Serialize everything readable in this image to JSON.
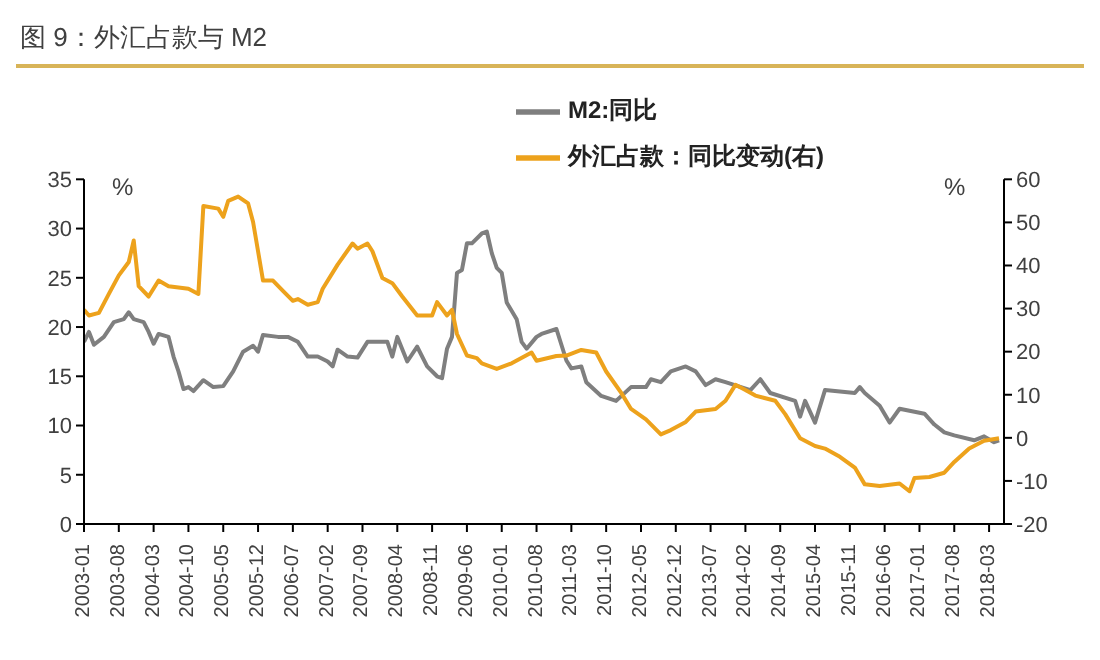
{
  "chart_data": {
    "type": "line",
    "title": "图 9：外汇占款与 M2",
    "ylabel": "%",
    "y2label": "%",
    "xlim": [
      "2003-01",
      "2018-06"
    ],
    "xticks": [
      "2003-01",
      "2003-08",
      "2004-03",
      "2004-10",
      "2005-05",
      "2005-12",
      "2006-07",
      "2007-02",
      "2007-09",
      "2008-04",
      "2008-11",
      "2009-06",
      "2010-01",
      "2010-08",
      "2011-03",
      "2011-10",
      "2012-05",
      "2012-12",
      "2013-07",
      "2014-02",
      "2014-09",
      "2015-04",
      "2015-11",
      "2016-06",
      "2017-01",
      "2017-08",
      "2018-03"
    ],
    "ylim": [
      0,
      35
    ],
    "yticks": [
      0,
      5,
      10,
      15,
      20,
      25,
      30,
      35
    ],
    "y2lim": [
      -20,
      60
    ],
    "y2ticks": [
      -20,
      -10,
      0,
      10,
      20,
      30,
      40,
      50,
      60
    ],
    "legend": "top",
    "line_style": "solid",
    "marker": "none",
    "series": [
      {
        "name": "M2:同比",
        "color": "#7f7f7f",
        "x": [
          "2003-01",
          "2003-02",
          "2003-03",
          "2003-05",
          "2003-07",
          "2003-09",
          "2003-10",
          "2003-11",
          "2004-01",
          "2004-02",
          "2004-03",
          "2004-04",
          "2004-06",
          "2004-07",
          "2004-08",
          "2004-09",
          "2004-10",
          "2004-11",
          "2005-01",
          "2005-03",
          "2005-05",
          "2005-07",
          "2005-09",
          "2005-11",
          "2005-12",
          "2006-01",
          "2006-04",
          "2006-06",
          "2006-08",
          "2006-10",
          "2006-12",
          "2007-02",
          "2007-03",
          "2007-04",
          "2007-06",
          "2007-08",
          "2007-10",
          "2007-12",
          "2008-02",
          "2008-03",
          "2008-04",
          "2008-06",
          "2008-08",
          "2008-10",
          "2008-12",
          "2009-01",
          "2009-02",
          "2009-03",
          "2009-04",
          "2009-05",
          "2009-06",
          "2009-07",
          "2009-09",
          "2009-10",
          "2009-11",
          "2009-12",
          "2010-01",
          "2010-02",
          "2010-04",
          "2010-05",
          "2010-06",
          "2010-08",
          "2010-09",
          "2010-12",
          "2011-01",
          "2011-02",
          "2011-03",
          "2011-05",
          "2011-06",
          "2011-09",
          "2011-12",
          "2012-03",
          "2012-06",
          "2012-07",
          "2012-09",
          "2012-11",
          "2013-02",
          "2013-04",
          "2013-06",
          "2013-08",
          "2013-10",
          "2014-03",
          "2014-05",
          "2014-07",
          "2014-12",
          "2015-01",
          "2015-02",
          "2015-04",
          "2015-06",
          "2015-12",
          "2016-01",
          "2016-02",
          "2016-05",
          "2016-07",
          "2016-09",
          "2017-02",
          "2017-04",
          "2017-06",
          "2017-08",
          "2017-12",
          "2018-02",
          "2018-04",
          "2018-05"
        ],
        "values": [
          18.5,
          19.5,
          18.2,
          19.0,
          20.5,
          20.8,
          21.5,
          20.8,
          20.5,
          19.5,
          18.3,
          19.3,
          19.0,
          17.0,
          15.5,
          13.7,
          13.9,
          13.5,
          14.6,
          13.9,
          14.0,
          15.5,
          17.5,
          18.1,
          17.5,
          19.2,
          19.0,
          19.0,
          18.5,
          17.0,
          17.0,
          16.5,
          16.0,
          17.7,
          17.0,
          16.9,
          18.5,
          18.5,
          18.5,
          17.0,
          19.0,
          16.5,
          18.0,
          16.0,
          15.0,
          14.8,
          17.8,
          19.0,
          25.5,
          25.8,
          28.5,
          28.5,
          29.5,
          29.7,
          27.5,
          26.0,
          25.5,
          22.5,
          20.8,
          18.5,
          17.8,
          19.0,
          19.3,
          19.8,
          18.2,
          16.6,
          15.8,
          16.0,
          14.4,
          13.0,
          12.5,
          13.9,
          13.9,
          14.7,
          14.4,
          15.5,
          16.0,
          15.5,
          14.1,
          14.7,
          14.4,
          13.6,
          14.7,
          13.3,
          12.5,
          10.9,
          12.5,
          10.3,
          13.6,
          13.3,
          13.9,
          13.3,
          12.0,
          10.3,
          11.7,
          11.2,
          10.1,
          9.3,
          9.0,
          8.5,
          8.9,
          8.3,
          8.5
        ]
      },
      {
        "name": "外汇占款：同比变动(右)",
        "color": "#eda21c",
        "axis": "y2",
        "x": [
          "2003-01",
          "2003-02",
          "2003-04",
          "2003-06",
          "2003-08",
          "2003-10",
          "2003-11",
          "2003-12",
          "2004-02",
          "2004-04",
          "2004-06",
          "2004-10",
          "2004-12",
          "2005-01",
          "2005-04",
          "2005-05",
          "2005-06",
          "2005-08",
          "2005-10",
          "2005-11",
          "2006-01",
          "2006-03",
          "2006-05",
          "2006-07",
          "2006-08",
          "2006-10",
          "2006-12",
          "2007-01",
          "2007-04",
          "2007-07",
          "2007-08",
          "2007-10",
          "2007-11",
          "2008-01",
          "2008-03",
          "2008-05",
          "2008-08",
          "2008-11",
          "2008-12",
          "2009-02",
          "2009-03",
          "2009-04",
          "2009-06",
          "2009-08",
          "2009-09",
          "2009-12",
          "2010-03",
          "2010-07",
          "2010-08",
          "2010-12",
          "2011-02",
          "2011-05",
          "2011-08",
          "2011-10",
          "2012-01",
          "2012-03",
          "2012-06",
          "2012-09",
          "2012-11",
          "2013-02",
          "2013-04",
          "2013-08",
          "2013-10",
          "2013-12",
          "2014-02",
          "2014-04",
          "2014-08",
          "2014-10",
          "2015-01",
          "2015-04",
          "2015-06",
          "2015-09",
          "2015-12",
          "2016-02",
          "2016-05",
          "2016-09",
          "2016-11",
          "2016-12",
          "2017-03",
          "2017-06",
          "2017-08",
          "2017-11",
          "2018-02",
          "2018-05"
        ],
        "values": [
          29.7,
          28.4,
          29.0,
          33.4,
          37.7,
          40.8,
          45.8,
          35.2,
          32.8,
          36.5,
          35.2,
          34.6,
          33.4,
          53.8,
          53.2,
          51.3,
          55.0,
          56.0,
          54.4,
          50.1,
          36.5,
          36.5,
          34.1,
          31.8,
          32.2,
          30.9,
          31.5,
          34.6,
          40.2,
          45.1,
          43.9,
          45.1,
          43.3,
          37.1,
          35.9,
          32.8,
          28.4,
          28.4,
          31.5,
          28.4,
          29.7,
          24.1,
          19.1,
          18.5,
          17.3,
          16.0,
          17.3,
          19.8,
          17.9,
          19.0,
          19.1,
          20.4,
          19.8,
          15.4,
          10.5,
          6.7,
          4.3,
          0.8,
          1.8,
          3.7,
          6.1,
          6.7,
          8.6,
          12.3,
          11.1,
          9.8,
          8.6,
          5.5,
          -0.1,
          -1.9,
          -2.5,
          -4.4,
          -6.9,
          -10.8,
          -11.2,
          -10.6,
          -12.4,
          -9.3,
          -9.1,
          -8.1,
          -5.6,
          -2.5,
          -0.7,
          -0.1
        ]
      }
    ]
  }
}
